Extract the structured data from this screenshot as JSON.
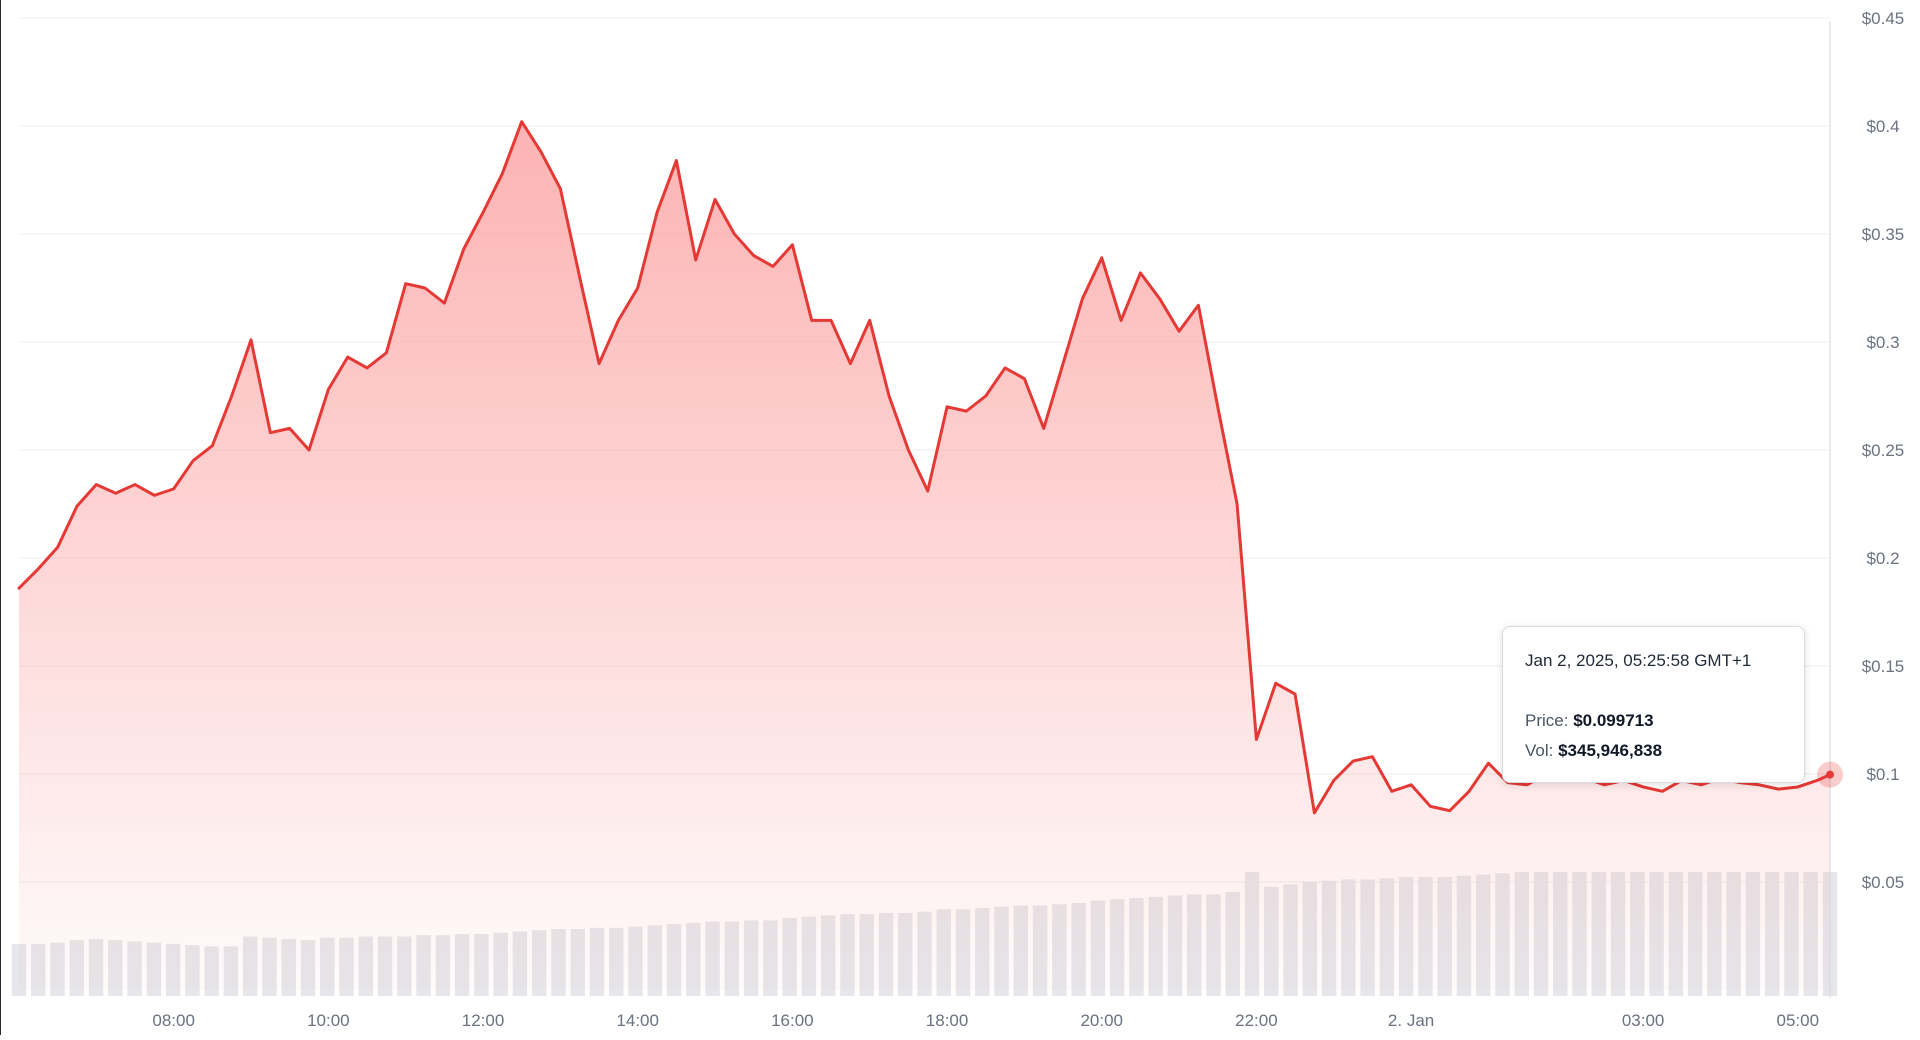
{
  "chart_data": {
    "type": "area",
    "y_tick_labels": [
      "$0.45",
      "$0.4",
      "$0.35",
      "$0.3",
      "$0.25",
      "$0.2",
      "$0.15",
      "$0.1",
      "$0.05"
    ],
    "x_tick_labels": [
      "08:00",
      "10:00",
      "12:00",
      "14:00",
      "16:00",
      "18:00",
      "20:00",
      "22:00",
      "2. Jan",
      "03:00",
      "05:00"
    ],
    "ylim": [
      0,
      0.45
    ],
    "grid": true,
    "price": {
      "x": [
        "06:00",
        "06:15",
        "06:30",
        "06:45",
        "07:00",
        "07:15",
        "07:30",
        "07:45",
        "08:00",
        "08:15",
        "08:30",
        "08:45",
        "09:00",
        "09:15",
        "09:30",
        "09:45",
        "10:00",
        "10:15",
        "10:30",
        "10:45",
        "11:00",
        "11:15",
        "11:30",
        "11:45",
        "12:00",
        "12:15",
        "12:30",
        "12:45",
        "13:00",
        "13:15",
        "13:30",
        "13:45",
        "14:00",
        "14:15",
        "14:30",
        "14:45",
        "15:00",
        "15:15",
        "15:30",
        "15:45",
        "16:00",
        "16:15",
        "16:30",
        "16:45",
        "17:00",
        "17:15",
        "17:30",
        "17:45",
        "18:00",
        "18:15",
        "18:30",
        "18:45",
        "19:00",
        "19:15",
        "19:30",
        "19:45",
        "20:00",
        "20:15",
        "20:30",
        "20:45",
        "21:00",
        "21:15",
        "21:30",
        "21:45",
        "22:00",
        "22:15",
        "22:30",
        "22:45",
        "23:00",
        "23:15",
        "23:30",
        "23:45",
        "00:00",
        "00:15",
        "00:30",
        "00:45",
        "01:00",
        "01:15",
        "01:30",
        "01:45",
        "02:00",
        "02:15",
        "02:30",
        "02:45",
        "03:00",
        "03:15",
        "03:30",
        "03:45",
        "04:00",
        "04:15",
        "04:30",
        "04:45",
        "05:00",
        "05:15",
        "05:25"
      ],
      "values": [
        0.186,
        0.195,
        0.205,
        0.224,
        0.234,
        0.23,
        0.234,
        0.229,
        0.232,
        0.245,
        0.252,
        0.275,
        0.301,
        0.258,
        0.26,
        0.25,
        0.278,
        0.293,
        0.288,
        0.295,
        0.327,
        0.325,
        0.318,
        0.343,
        0.36,
        0.378,
        0.402,
        0.388,
        0.371,
        0.33,
        0.29,
        0.31,
        0.325,
        0.36,
        0.384,
        0.338,
        0.366,
        0.35,
        0.34,
        0.335,
        0.345,
        0.31,
        0.31,
        0.29,
        0.31,
        0.275,
        0.25,
        0.231,
        0.27,
        0.268,
        0.275,
        0.288,
        0.283,
        0.26,
        0.29,
        0.32,
        0.339,
        0.31,
        0.332,
        0.32,
        0.305,
        0.317,
        0.27,
        0.225,
        0.116,
        0.142,
        0.137,
        0.082,
        0.097,
        0.106,
        0.108,
        0.092,
        0.095,
        0.085,
        0.083,
        0.092,
        0.105,
        0.096,
        0.095,
        0.1,
        0.102,
        0.098,
        0.095,
        0.097,
        0.094,
        0.092,
        0.097,
        0.095,
        0.098,
        0.096,
        0.095,
        0.093,
        0.094,
        0.097,
        0.0997
      ]
    },
    "volume_relative": [
      0.42,
      0.42,
      0.43,
      0.45,
      0.46,
      0.45,
      0.44,
      0.43,
      0.42,
      0.41,
      0.4,
      0.4,
      0.48,
      0.47,
      0.46,
      0.45,
      0.47,
      0.47,
      0.48,
      0.48,
      0.48,
      0.49,
      0.49,
      0.5,
      0.5,
      0.51,
      0.52,
      0.53,
      0.54,
      0.54,
      0.55,
      0.55,
      0.56,
      0.57,
      0.58,
      0.59,
      0.6,
      0.6,
      0.61,
      0.61,
      0.63,
      0.64,
      0.65,
      0.66,
      0.66,
      0.67,
      0.67,
      0.68,
      0.7,
      0.7,
      0.71,
      0.72,
      0.73,
      0.73,
      0.74,
      0.75,
      0.77,
      0.78,
      0.79,
      0.8,
      0.81,
      0.82,
      0.82,
      0.84,
      1.0,
      0.88,
      0.9,
      0.92,
      0.93,
      0.94,
      0.94,
      0.95,
      0.96,
      0.96,
      0.96,
      0.97,
      0.98,
      0.99,
      1.0,
      1.0,
      1.0,
      1.0,
      1.0,
      1.0,
      1.0,
      1.0,
      1.0,
      1.0,
      1.0,
      1.0,
      1.0,
      1.0,
      1.0,
      1.0,
      1.0
    ],
    "colors": {
      "line": "#e53935",
      "area_top": "#fca5a5",
      "grid": "#ececec",
      "volume": "#e5e7eb",
      "axis_text": "#6b7280"
    }
  },
  "tooltip": {
    "timestamp": "Jan 2, 2025, 05:25:58 GMT+1",
    "price_label": "Price:",
    "price_value": "$0.099713",
    "vol_label": "Vol:",
    "vol_value": "$345,946,838"
  }
}
